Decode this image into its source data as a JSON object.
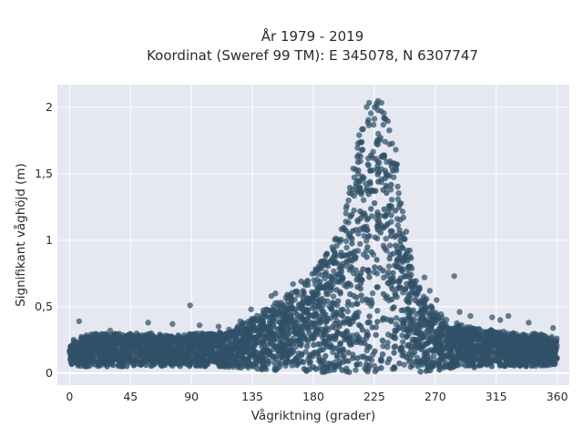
{
  "chart_data": {
    "type": "scatter",
    "title": "År 1979 - 2019",
    "subtitle": "Koordinat (Sweref 99 TM): E 345078, N 6307747",
    "xlabel": "Vågriktning (grader)",
    "ylabel": "Signifikant våghöjd (m)",
    "xlim": [
      -9,
      369
    ],
    "ylim": [
      -0.09,
      2.17
    ],
    "x_ticks": [
      0,
      45,
      90,
      135,
      180,
      225,
      270,
      315,
      360
    ],
    "x_tick_labels": [
      "0",
      "45",
      "90",
      "135",
      "180",
      "225",
      "270",
      "315",
      "360"
    ],
    "y_ticks": [
      0,
      0.5,
      1,
      1.5,
      2
    ],
    "y_tick_labels": [
      "0",
      "0,5",
      "1",
      "1,5",
      "2"
    ],
    "grid": true,
    "legend": "none",
    "marker_color": "#2f5068",
    "background_color": "#e5e8f0",
    "envelope": {
      "x": [
        0,
        10,
        20,
        30,
        45,
        60,
        75,
        90,
        105,
        120,
        135,
        150,
        165,
        180,
        190,
        200,
        205,
        210,
        215,
        220,
        225,
        230,
        235,
        240,
        245,
        250,
        255,
        260,
        270,
        280,
        290,
        300,
        315,
        330,
        345,
        360
      ],
      "y_max": [
        0.25,
        0.28,
        0.3,
        0.3,
        0.3,
        0.3,
        0.28,
        0.3,
        0.3,
        0.34,
        0.42,
        0.52,
        0.62,
        0.76,
        0.9,
        1.08,
        1.3,
        1.6,
        1.9,
        2.04,
        2.06,
        2.05,
        2.0,
        1.75,
        1.35,
        1.0,
        0.75,
        0.6,
        0.48,
        0.4,
        0.36,
        0.34,
        0.32,
        0.3,
        0.3,
        0.27
      ],
      "y_min": [
        0.06,
        0.05,
        0.05,
        0.05,
        0.05,
        0.05,
        0.05,
        0.05,
        0.05,
        0.04,
        0.03,
        0.02,
        0.01,
        0.01,
        0.0,
        0.0,
        0.0,
        0.0,
        0.0,
        0.0,
        0.0,
        0.0,
        0.0,
        0.0,
        0.0,
        0.0,
        0.01,
        0.01,
        0.02,
        0.03,
        0.04,
        0.04,
        0.05,
        0.05,
        0.05,
        0.06
      ]
    },
    "outliers": [
      {
        "x": 7,
        "y": 0.39
      },
      {
        "x": 30,
        "y": 0.32
      },
      {
        "x": 58,
        "y": 0.38
      },
      {
        "x": 76,
        "y": 0.37
      },
      {
        "x": 89,
        "y": 0.51
      },
      {
        "x": 96,
        "y": 0.36
      },
      {
        "x": 110,
        "y": 0.35
      },
      {
        "x": 126,
        "y": 0.39
      },
      {
        "x": 134,
        "y": 0.48
      },
      {
        "x": 149,
        "y": 0.58
      },
      {
        "x": 152,
        "y": 0.6
      },
      {
        "x": 165,
        "y": 0.67
      },
      {
        "x": 171,
        "y": 0.69
      },
      {
        "x": 184,
        "y": 0.78
      },
      {
        "x": 204,
        "y": 1.14
      },
      {
        "x": 262,
        "y": 0.72
      },
      {
        "x": 266,
        "y": 0.62
      },
      {
        "x": 271,
        "y": 0.55
      },
      {
        "x": 284,
        "y": 0.73
      },
      {
        "x": 288,
        "y": 0.46
      },
      {
        "x": 296,
        "y": 0.43
      },
      {
        "x": 312,
        "y": 0.42
      },
      {
        "x": 318,
        "y": 0.4
      },
      {
        "x": 324,
        "y": 0.43
      },
      {
        "x": 339,
        "y": 0.38
      },
      {
        "x": 357,
        "y": 0.34
      }
    ]
  }
}
